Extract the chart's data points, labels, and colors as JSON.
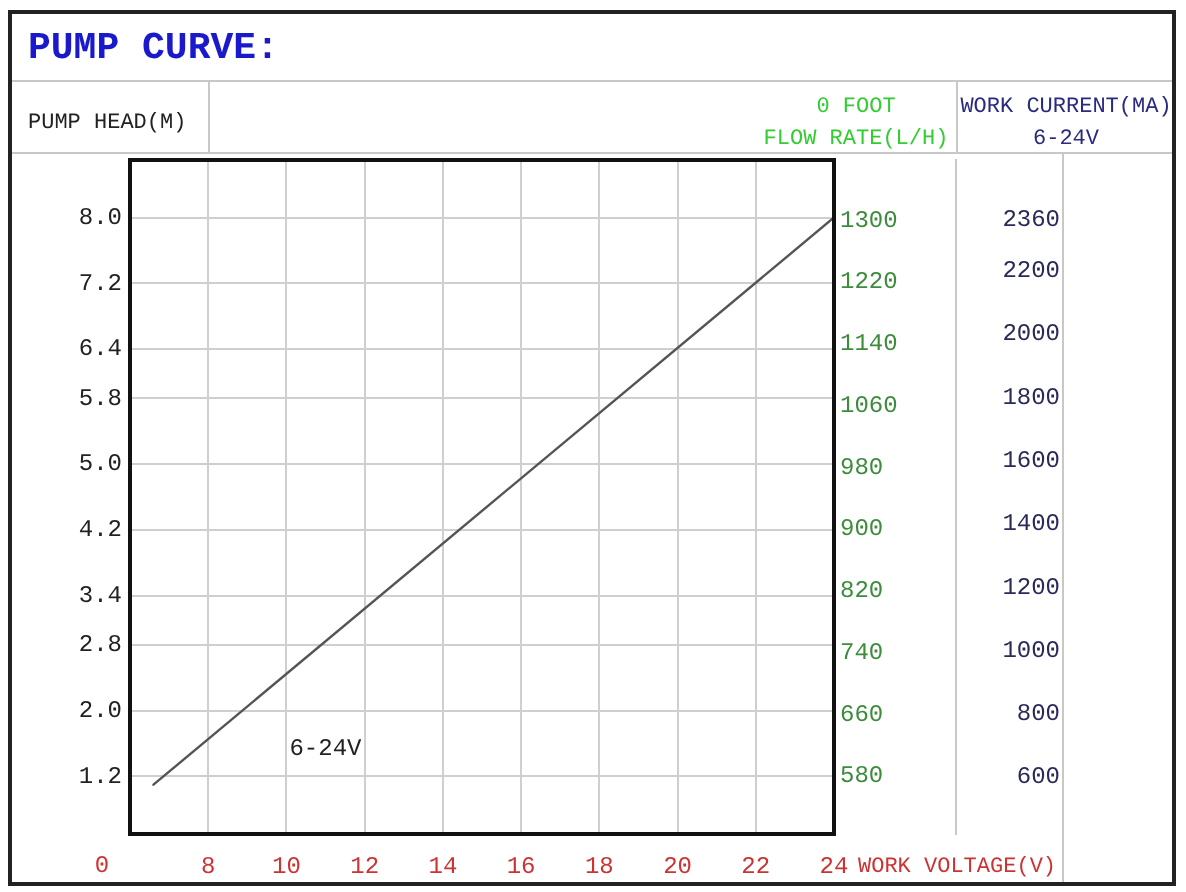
{
  "chart_data": {
    "type": "line",
    "title": "PUMP CURVE:",
    "xlabel": "WORK VOLTAGE(V)",
    "ylabel": "PUMP HEAD(M)",
    "y2label": "0 FOOT\nFLOW RATE(L/H)",
    "y3label": "WORK CURRENT(MA)\n6-24V",
    "annotations": [
      "0"
    ],
    "series": [
      {
        "name": "6-24V",
        "color": "#555555",
        "x": [
          6.6,
          24
        ],
        "values": [
          1.1,
          8
        ]
      }
    ],
    "xlim": [
      6,
      24
    ],
    "xticks": [
      8,
      10,
      12,
      14,
      16,
      18,
      20,
      22,
      24
    ],
    "ylim": [
      0.5,
      8.7
    ],
    "yticks": [
      1.2,
      {
        "value": 2,
        "label": "2.0"
      },
      2.8,
      3.4,
      4.2,
      {
        "value": 5,
        "label": "5.0"
      },
      5.8,
      6.4,
      7.2,
      {
        "value": 8,
        "label": "8.0"
      }
    ],
    "y2lim": [
      505,
      1378
    ],
    "y2ticks": [
      580,
      660,
      740,
      820,
      900,
      980,
      1060,
      1140,
      1220,
      1300
    ],
    "y3lim": [
      420,
      2550
    ],
    "y3ticks": [
      600,
      800,
      1000,
      1200,
      1400,
      1600,
      1800,
      2000,
      2200,
      2360
    ],
    "grid": true
  }
}
